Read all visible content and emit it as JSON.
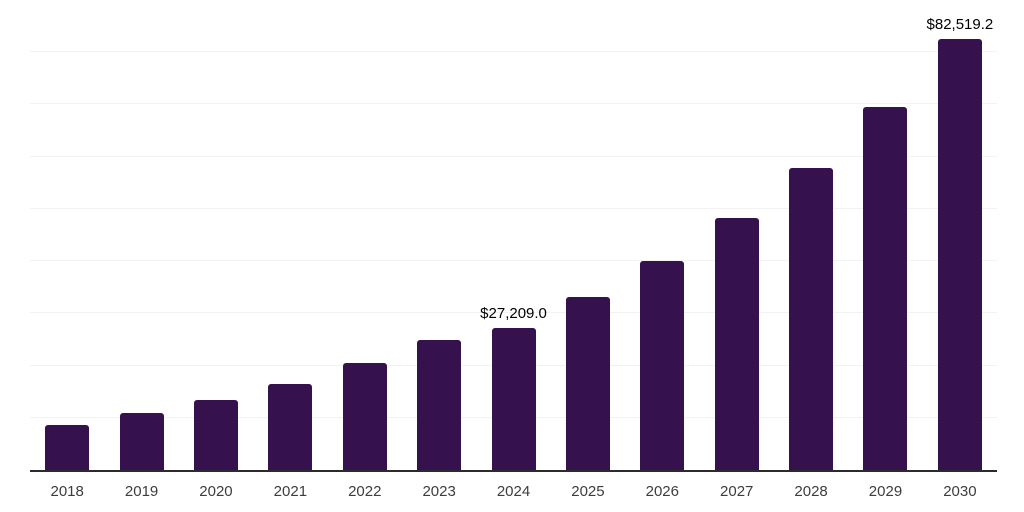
{
  "chart_data": {
    "type": "bar",
    "title": "",
    "xlabel": "",
    "ylabel": "",
    "categories": [
      "2018",
      "2019",
      "2020",
      "2021",
      "2022",
      "2023",
      "2024",
      "2025",
      "2026",
      "2027",
      "2028",
      "2029",
      "2030"
    ],
    "values": [
      8700,
      10900,
      13480,
      16550,
      20470,
      24960,
      27209.0,
      33090,
      40070,
      48240,
      57800,
      69470,
      82519.2
    ],
    "ylim": [
      0,
      90000
    ],
    "gridline_step": 10000,
    "grid": "horizontal",
    "legend": "none",
    "y_axis_ticks_visible": false,
    "data_labels": [
      {
        "category": "2024",
        "text": "$27,209.0"
      },
      {
        "category": "2030",
        "text": "$82,519.2"
      }
    ]
  },
  "style": {
    "bar_color": "#35114D",
    "gridline_color": "#F2F2F2",
    "axis_line_color": "#2B2B2B",
    "tick_label_color": "#3D3D3D",
    "data_label_color": "#000000",
    "background_color": "#FFFFFF"
  }
}
